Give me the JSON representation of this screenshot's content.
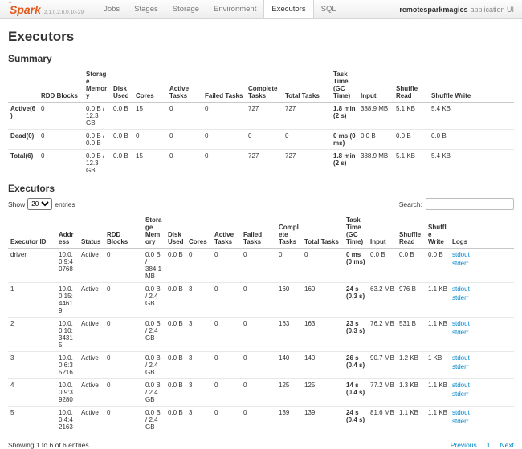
{
  "navbar": {
    "logo": "Spark",
    "version": "2.1.0.2.6.0.10-29",
    "items": [
      {
        "label": "Jobs",
        "active": false
      },
      {
        "label": "Stages",
        "active": false
      },
      {
        "label": "Storage",
        "active": false
      },
      {
        "label": "Environment",
        "active": false
      },
      {
        "label": "Executors",
        "active": true
      },
      {
        "label": "SQL",
        "active": false
      }
    ],
    "app_name": "remotesparkmagics",
    "app_suffix": "application UI"
  },
  "page": {
    "title": "Executors",
    "summary_heading": "Summary",
    "executors_heading": "Executors"
  },
  "summary_table": {
    "headers": [
      "",
      "RDD Blocks",
      "Storage Memory",
      "Disk Used",
      "Cores",
      "Active Tasks",
      "Failed Tasks",
      "Complete Tasks",
      "Total Tasks",
      "Task Time (GC Time)",
      "Input",
      "Shuffle Read",
      "Shuffle Write"
    ],
    "rows": [
      {
        "label": "Active(6)",
        "rdd_blocks": "0",
        "storage_memory": "0.0 B / 12.3 GB",
        "disk_used": "0.0 B",
        "cores": "15",
        "active_tasks": "0",
        "failed_tasks": "0",
        "complete_tasks": "727",
        "total_tasks": "727",
        "task_time": "1.8 min (2 s)",
        "input": "388.9 MB",
        "shuffle_read": "5.1 KB",
        "shuffle_write": "5.4 KB"
      },
      {
        "label": "Dead(0)",
        "rdd_blocks": "0",
        "storage_memory": "0.0 B / 0.0 B",
        "disk_used": "0.0 B",
        "cores": "0",
        "active_tasks": "0",
        "failed_tasks": "0",
        "complete_tasks": "0",
        "total_tasks": "0",
        "task_time": "0 ms (0 ms)",
        "input": "0.0 B",
        "shuffle_read": "0.0 B",
        "shuffle_write": "0.0 B"
      },
      {
        "label": "Total(6)",
        "rdd_blocks": "0",
        "storage_memory": "0.0 B / 12.3 GB",
        "disk_used": "0.0 B",
        "cores": "15",
        "active_tasks": "0",
        "failed_tasks": "0",
        "complete_tasks": "727",
        "total_tasks": "727",
        "task_time": "1.8 min (2 s)",
        "input": "388.9 MB",
        "shuffle_read": "5.1 KB",
        "shuffle_write": "5.4 KB"
      }
    ]
  },
  "controls": {
    "show_label": "Show",
    "entries_selected": "20",
    "entries_label": "entries",
    "search_label": "Search:",
    "search_value": ""
  },
  "executors_table": {
    "headers": [
      "Executor ID",
      "Address",
      "Status",
      "RDD Blocks",
      "Storage Memory",
      "Disk Used",
      "Cores",
      "Active Tasks",
      "Failed Tasks",
      "Complete Tasks",
      "Total Tasks",
      "Task Time (GC Time)",
      "Input",
      "Shuffle Read",
      "Shuffle Write",
      "Logs"
    ],
    "rows": [
      {
        "id": "driver",
        "address": "10.0.0.9:40768",
        "status": "Active",
        "rdd_blocks": "0",
        "storage_memory": "0.0 B / 384.1 MB",
        "disk_used": "0.0 B",
        "cores": "0",
        "active_tasks": "0",
        "failed_tasks": "0",
        "complete_tasks": "0",
        "total_tasks": "0",
        "task_time": "0 ms (0 ms)",
        "input": "0.0 B",
        "shuffle_read": "0.0 B",
        "shuffle_write": "0.0 B",
        "logs": {
          "stdout": "stdout",
          "stderr": "stderr"
        }
      },
      {
        "id": "1",
        "address": "10.0.0.15:44619",
        "status": "Active",
        "rdd_blocks": "0",
        "storage_memory": "0.0 B / 2.4 GB",
        "disk_used": "0.0 B",
        "cores": "3",
        "active_tasks": "0",
        "failed_tasks": "0",
        "complete_tasks": "160",
        "total_tasks": "160",
        "task_time": "24 s (0.3 s)",
        "input": "63.2 MB",
        "shuffle_read": "976 B",
        "shuffle_write": "1.1 KB",
        "logs": {
          "stdout": "stdout",
          "stderr": "stderr"
        }
      },
      {
        "id": "2",
        "address": "10.0.0.10:34315",
        "status": "Active",
        "rdd_blocks": "0",
        "storage_memory": "0.0 B / 2.4 GB",
        "disk_used": "0.0 B",
        "cores": "3",
        "active_tasks": "0",
        "failed_tasks": "0",
        "complete_tasks": "163",
        "total_tasks": "163",
        "task_time": "23 s (0.3 s)",
        "input": "76.2 MB",
        "shuffle_read": "531 B",
        "shuffle_write": "1.1 KB",
        "logs": {
          "stdout": "stdout",
          "stderr": "stderr"
        }
      },
      {
        "id": "3",
        "address": "10.0.0.6:35216",
        "status": "Active",
        "rdd_blocks": "0",
        "storage_memory": "0.0 B / 2.4 GB",
        "disk_used": "0.0 B",
        "cores": "3",
        "active_tasks": "0",
        "failed_tasks": "0",
        "complete_tasks": "140",
        "total_tasks": "140",
        "task_time": "26 s (0.4 s)",
        "input": "90.7 MB",
        "shuffle_read": "1.2 KB",
        "shuffle_write": "1 KB",
        "logs": {
          "stdout": "stdout",
          "stderr": "stderr"
        }
      },
      {
        "id": "4",
        "address": "10.0.0.9:39280",
        "status": "Active",
        "rdd_blocks": "0",
        "storage_memory": "0.0 B / 2.4 GB",
        "disk_used": "0.0 B",
        "cores": "3",
        "active_tasks": "0",
        "failed_tasks": "0",
        "complete_tasks": "125",
        "total_tasks": "125",
        "task_time": "14 s (0.4 s)",
        "input": "77.2 MB",
        "shuffle_read": "1.3 KB",
        "shuffle_write": "1.1 KB",
        "logs": {
          "stdout": "stdout",
          "stderr": "stderr"
        }
      },
      {
        "id": "5",
        "address": "10.0.0.4:42163",
        "status": "Active",
        "rdd_blocks": "0",
        "storage_memory": "0.0 B / 2.4 GB",
        "disk_used": "0.0 B",
        "cores": "3",
        "active_tasks": "0",
        "failed_tasks": "0",
        "complete_tasks": "139",
        "total_tasks": "139",
        "task_time": "24 s (0.4 s)",
        "input": "81.6 MB",
        "shuffle_read": "1.1 KB",
        "shuffle_write": "1.1 KB",
        "logs": {
          "stdout": "stdout",
          "stderr": "stderr"
        }
      }
    ]
  },
  "footer": {
    "showing": "Showing 1 to 6 of 6 entries",
    "previous": "Previous",
    "current_page": "1",
    "next": "Next"
  }
}
